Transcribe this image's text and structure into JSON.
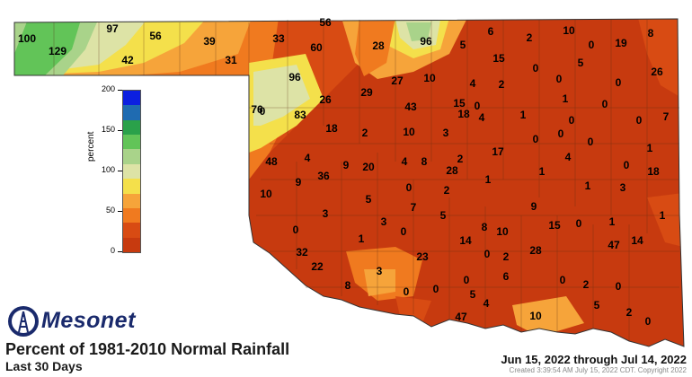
{
  "map": {
    "title": "Percent of 1981-2010 Normal Rainfall",
    "subtitle": "Last 30 Days",
    "date_range": "Jun 15, 2022 through Jul 14, 2022",
    "created": "Created 3:39:54 AM July 15, 2022 CDT. Copyright 2022",
    "logo_text": "Mesonet",
    "logo_icon": "mesonet-tower-logo-icon"
  },
  "legend": {
    "unit": "percent",
    "range": [
      0,
      200
    ],
    "ticks": [
      "200",
      "150",
      "100",
      "50",
      "0"
    ],
    "colors": [
      "#0c1fe0",
      "#1f6bb1",
      "#2aa14a",
      "#62c458",
      "#a9d38a",
      "#dde3a6",
      "#f4e04b",
      "#f6a43a",
      "#f07a1f",
      "#d84b13",
      "#c73a0f"
    ]
  },
  "station_values": [
    "100",
    "129",
    "97",
    "56",
    "42",
    "39",
    "33",
    "56",
    "31",
    "60",
    "28",
    "96",
    "5",
    "6",
    "2",
    "10",
    "19",
    "8",
    "0",
    "15",
    "26",
    "0",
    "0",
    "5",
    "96",
    "26",
    "29",
    "27",
    "10",
    "4",
    "2",
    "0",
    "0",
    "76",
    "83",
    "43",
    "15",
    "18",
    "0",
    "4",
    "1",
    "1",
    "0",
    "7",
    "18",
    "2",
    "10",
    "3",
    "17",
    "0",
    "0",
    "0",
    "0",
    "48",
    "4",
    "9",
    "20",
    "4",
    "8",
    "2",
    "28",
    "1",
    "4",
    "1",
    "0",
    "10",
    "9",
    "36",
    "5",
    "0",
    "2",
    "1",
    "1",
    "0",
    "18",
    "3",
    "1",
    "3",
    "3",
    "7",
    "5",
    "15",
    "0",
    "1",
    "8",
    "9",
    "0",
    "0",
    "14",
    "10",
    "1",
    "14",
    "47",
    "32",
    "3",
    "23",
    "0",
    "2",
    "28",
    "22",
    "8",
    "0",
    "0",
    "0",
    "5",
    "6",
    "2",
    "0",
    "0",
    "47",
    "4",
    "10",
    "5",
    "2",
    "0"
  ]
}
